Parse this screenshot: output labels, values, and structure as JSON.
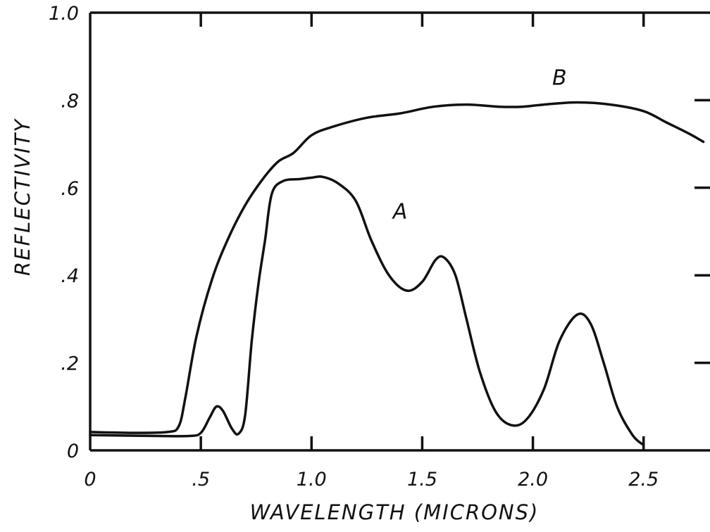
{
  "chart_data": {
    "type": "line",
    "title": "",
    "xlabel": "WAVELENGTH (MICRONS)",
    "ylabel": "REFLECTIVITY",
    "xlim": [
      0,
      2.8
    ],
    "ylim": [
      0,
      1.0
    ],
    "grid": false,
    "x_ticks": [
      0,
      0.5,
      1.0,
      1.5,
      2.0,
      2.5
    ],
    "x_tick_labels": [
      "0",
      ".5",
      "1.0",
      "1.5",
      "2.0",
      "2.5"
    ],
    "y_ticks": [
      0,
      0.2,
      0.4,
      0.6,
      0.8,
      1.0
    ],
    "y_tick_labels": [
      "0",
      ".2",
      ".4",
      ".6",
      ".8",
      "1.0"
    ],
    "line_color": "#111111",
    "series": [
      {
        "name": "A",
        "points": [
          [
            0.0,
            0.035
          ],
          [
            0.3,
            0.033
          ],
          [
            0.45,
            0.033
          ],
          [
            0.5,
            0.04
          ],
          [
            0.54,
            0.075
          ],
          [
            0.57,
            0.1
          ],
          [
            0.6,
            0.09
          ],
          [
            0.64,
            0.05
          ],
          [
            0.67,
            0.038
          ],
          [
            0.7,
            0.08
          ],
          [
            0.73,
            0.25
          ],
          [
            0.76,
            0.38
          ],
          [
            0.79,
            0.48
          ],
          [
            0.82,
            0.585
          ],
          [
            0.87,
            0.615
          ],
          [
            0.95,
            0.62
          ],
          [
            1.0,
            0.623
          ],
          [
            1.05,
            0.625
          ],
          [
            1.12,
            0.61
          ],
          [
            1.2,
            0.57
          ],
          [
            1.27,
            0.48
          ],
          [
            1.35,
            0.4
          ],
          [
            1.43,
            0.365
          ],
          [
            1.5,
            0.385
          ],
          [
            1.56,
            0.435
          ],
          [
            1.6,
            0.44
          ],
          [
            1.65,
            0.4
          ],
          [
            1.7,
            0.3
          ],
          [
            1.76,
            0.18
          ],
          [
            1.83,
            0.09
          ],
          [
            1.9,
            0.058
          ],
          [
            1.97,
            0.07
          ],
          [
            2.05,
            0.14
          ],
          [
            2.12,
            0.25
          ],
          [
            2.2,
            0.31
          ],
          [
            2.26,
            0.29
          ],
          [
            2.32,
            0.2
          ],
          [
            2.38,
            0.1
          ],
          [
            2.45,
            0.035
          ],
          [
            2.5,
            0.012
          ]
        ]
      },
      {
        "name": "B",
        "points": [
          [
            0.0,
            0.042
          ],
          [
            0.2,
            0.04
          ],
          [
            0.35,
            0.042
          ],
          [
            0.4,
            0.055
          ],
          [
            0.43,
            0.12
          ],
          [
            0.48,
            0.26
          ],
          [
            0.55,
            0.39
          ],
          [
            0.62,
            0.48
          ],
          [
            0.7,
            0.56
          ],
          [
            0.78,
            0.62
          ],
          [
            0.85,
            0.66
          ],
          [
            0.92,
            0.68
          ],
          [
            1.0,
            0.72
          ],
          [
            1.1,
            0.74
          ],
          [
            1.25,
            0.76
          ],
          [
            1.4,
            0.77
          ],
          [
            1.55,
            0.785
          ],
          [
            1.7,
            0.79
          ],
          [
            1.85,
            0.785
          ],
          [
            1.95,
            0.785
          ],
          [
            2.05,
            0.79
          ],
          [
            2.2,
            0.795
          ],
          [
            2.35,
            0.79
          ],
          [
            2.5,
            0.775
          ],
          [
            2.6,
            0.75
          ],
          [
            2.7,
            0.725
          ],
          [
            2.77,
            0.705
          ]
        ]
      }
    ],
    "annotations": [
      {
        "text": "A",
        "x": 1.4,
        "y": 0.53
      },
      {
        "text": "B",
        "x": 2.12,
        "y": 0.835
      }
    ]
  }
}
